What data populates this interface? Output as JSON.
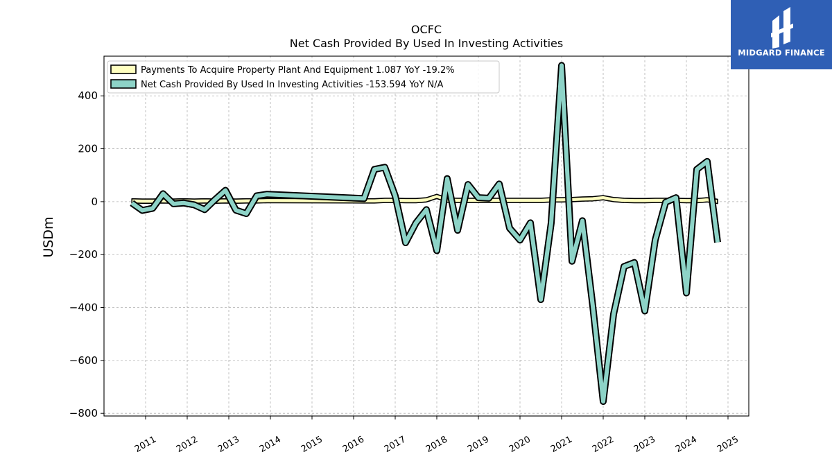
{
  "chart_data": {
    "type": "line",
    "title": "OCFC",
    "subtitle": "Net Cash Provided By Used In Investing Activities",
    "ylabel": "USDm",
    "xlabel": "",
    "ylim": [
      -810,
      550
    ],
    "xlim": [
      2010.0,
      2025.5
    ],
    "grid": true,
    "legend_position": "top-left",
    "x_ticks": [
      2011,
      2012,
      2013,
      2014,
      2015,
      2016,
      2017,
      2018,
      2019,
      2020,
      2021,
      2022,
      2023,
      2024,
      2025
    ],
    "y_ticks": [
      400,
      200,
      0,
      -200,
      -400,
      -600,
      -800
    ],
    "y_tick_labels": [
      "400",
      "200",
      "0",
      "−200",
      "−400",
      "−600",
      "−800"
    ],
    "series": [
      {
        "name": "Payments To Acquire Property Plant And Equipment",
        "legend_label": "Payments To Acquire Property Plant And Equipment  1.087 YoY -19.2%",
        "color": "#ffffc0",
        "style": "band",
        "points": [
          [
            2010.67,
            3
          ],
          [
            2010.92,
            2
          ],
          [
            2011.17,
            2
          ],
          [
            2011.42,
            3
          ],
          [
            2011.67,
            2
          ],
          [
            2011.92,
            3
          ],
          [
            2012.17,
            2
          ],
          [
            2012.42,
            3
          ],
          [
            2012.67,
            2
          ],
          [
            2012.92,
            3
          ],
          [
            2013.17,
            2
          ],
          [
            2013.42,
            3
          ],
          [
            2013.67,
            3
          ],
          [
            2013.92,
            4
          ],
          [
            2014.17,
            4
          ],
          [
            2016.25,
            3
          ],
          [
            2016.5,
            3
          ],
          [
            2016.75,
            5
          ],
          [
            2017.0,
            5
          ],
          [
            2017.25,
            4
          ],
          [
            2017.5,
            4
          ],
          [
            2017.75,
            7
          ],
          [
            2018.0,
            20
          ],
          [
            2018.25,
            6
          ],
          [
            2018.5,
            5
          ],
          [
            2018.75,
            5
          ],
          [
            2019.0,
            5
          ],
          [
            2019.25,
            5
          ],
          [
            2019.5,
            5
          ],
          [
            2019.75,
            5
          ],
          [
            2020.0,
            5
          ],
          [
            2020.25,
            5
          ],
          [
            2020.5,
            5
          ],
          [
            2020.75,
            7
          ],
          [
            2021.0,
            7
          ],
          [
            2021.25,
            8
          ],
          [
            2021.5,
            10
          ],
          [
            2021.75,
            11
          ],
          [
            2022.0,
            15
          ],
          [
            2022.25,
            8
          ],
          [
            2022.5,
            5
          ],
          [
            2022.75,
            4
          ],
          [
            2023.0,
            4
          ],
          [
            2023.25,
            5
          ],
          [
            2023.5,
            5
          ],
          [
            2023.75,
            5
          ],
          [
            2024.0,
            4
          ],
          [
            2024.25,
            4
          ],
          [
            2024.5,
            7
          ],
          [
            2024.75,
            1.087
          ]
        ]
      },
      {
        "name": "Net Cash Provided By Used In Investing Activities",
        "legend_label": "Net Cash Provided By Used In Investing Activities  -153.594 YoY N/A",
        "color": "#8dd3c7",
        "style": "line",
        "points": [
          [
            2010.67,
            -5
          ],
          [
            2010.92,
            -33
          ],
          [
            2011.17,
            -25
          ],
          [
            2011.42,
            30
          ],
          [
            2011.67,
            -8
          ],
          [
            2011.92,
            -5
          ],
          [
            2012.17,
            -12
          ],
          [
            2012.42,
            -30
          ],
          [
            2012.67,
            8
          ],
          [
            2012.92,
            43
          ],
          [
            2013.17,
            -32
          ],
          [
            2013.42,
            -45
          ],
          [
            2013.67,
            22
          ],
          [
            2013.92,
            28
          ],
          [
            2016.25,
            12
          ],
          [
            2016.5,
            122
          ],
          [
            2016.75,
            130
          ],
          [
            2017.0,
            22
          ],
          [
            2017.25,
            -155
          ],
          [
            2017.5,
            -80
          ],
          [
            2017.75,
            -30
          ],
          [
            2018.0,
            -185
          ],
          [
            2018.25,
            87
          ],
          [
            2018.5,
            -108
          ],
          [
            2018.75,
            65
          ],
          [
            2019.0,
            15
          ],
          [
            2019.25,
            13
          ],
          [
            2019.5,
            67
          ],
          [
            2019.75,
            -100
          ],
          [
            2020.0,
            -145
          ],
          [
            2020.25,
            -80
          ],
          [
            2020.5,
            -370
          ],
          [
            2020.75,
            -80
          ],
          [
            2021.0,
            515
          ],
          [
            2021.25,
            -225
          ],
          [
            2021.5,
            -72
          ],
          [
            2021.75,
            -395
          ],
          [
            2022.0,
            -755
          ],
          [
            2022.25,
            -425
          ],
          [
            2022.5,
            -245
          ],
          [
            2022.75,
            -230
          ],
          [
            2023.0,
            -413
          ],
          [
            2023.25,
            -145
          ],
          [
            2023.5,
            -2
          ],
          [
            2023.75,
            15
          ],
          [
            2024.0,
            -345
          ],
          [
            2024.25,
            122
          ],
          [
            2024.5,
            152
          ],
          [
            2024.75,
            -153.594
          ]
        ]
      }
    ]
  },
  "logo": {
    "text": "MIDGARD FINANCE",
    "bg_color": "#2f5fb5"
  }
}
